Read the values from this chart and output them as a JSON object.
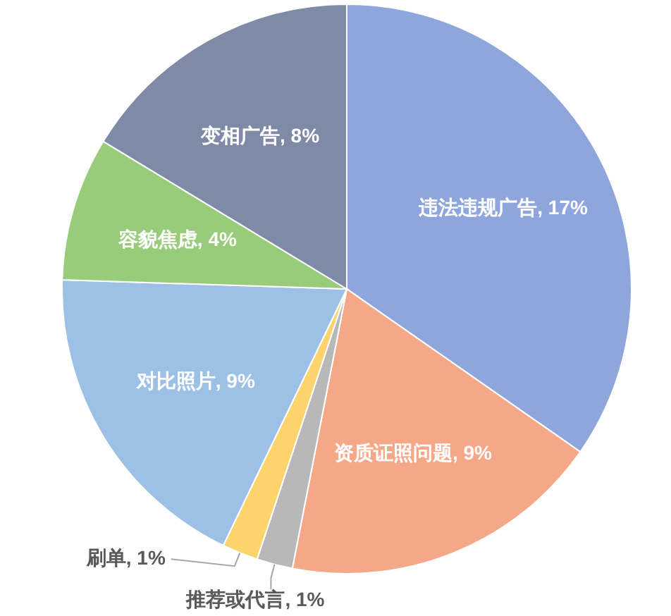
{
  "chart_data": {
    "type": "pie",
    "categories": [
      "违法违规广告",
      "资质证照问题",
      "推荐或代言",
      "刷单",
      "对比照片",
      "容貌焦虑",
      "变相广告"
    ],
    "values": [
      17,
      9,
      1,
      1,
      9,
      4,
      8
    ],
    "value_labels": [
      "17%",
      "9%",
      "1%",
      "1%",
      "9%",
      "4%",
      "8%"
    ],
    "colors": [
      "#8fa6dc",
      "#f4a888",
      "#b8b8b8",
      "#fdd46c",
      "#9dc0e6",
      "#98cc7a",
      "#7f8aa6"
    ]
  }
}
